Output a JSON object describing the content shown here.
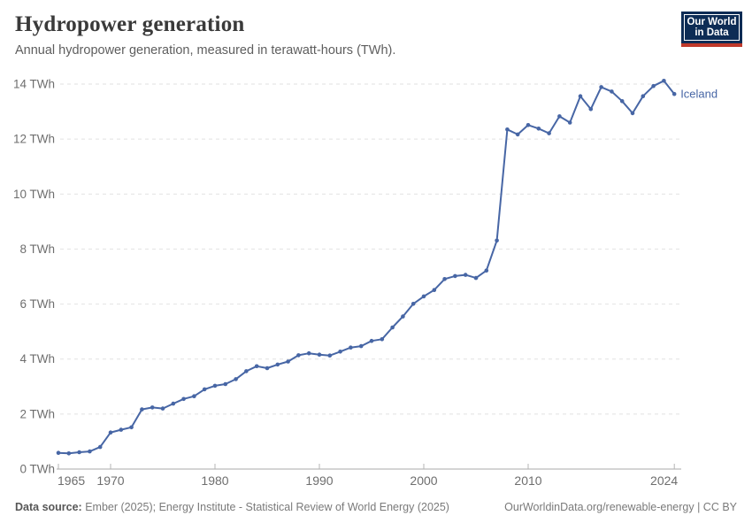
{
  "header": {
    "title": "Hydropower generation",
    "subtitle": "Annual hydropower generation, measured in terawatt-hours (TWh).",
    "logo": {
      "line1": "Our World",
      "line2": "in Data",
      "bg_color": "#0d2c55",
      "accent_color": "#c0392b"
    }
  },
  "chart_data": {
    "type": "line",
    "title": "Hydropower generation",
    "unit": "TWh",
    "grid": "horizontal-dashed",
    "legend_position": "end-of-line-label",
    "xlim": [
      1965,
      2024
    ],
    "ylim": [
      0,
      14
    ],
    "x_ticks": [
      1965,
      1970,
      1980,
      1990,
      2000,
      2010,
      2024
    ],
    "y_ticks": [
      0,
      2,
      4,
      6,
      8,
      10,
      12,
      14
    ],
    "y_tick_suffix": " TWh",
    "series": [
      {
        "name": "Iceland",
        "color": "#4766a5",
        "years": [
          1965,
          1966,
          1967,
          1968,
          1969,
          1970,
          1971,
          1972,
          1973,
          1974,
          1975,
          1976,
          1977,
          1978,
          1979,
          1980,
          1981,
          1982,
          1983,
          1984,
          1985,
          1986,
          1987,
          1988,
          1989,
          1990,
          1991,
          1992,
          1993,
          1994,
          1995,
          1996,
          1997,
          1998,
          1999,
          2000,
          2001,
          2002,
          2003,
          2004,
          2005,
          2006,
          2007,
          2008,
          2009,
          2010,
          2011,
          2012,
          2013,
          2014,
          2015,
          2016,
          2017,
          2018,
          2019,
          2020,
          2021,
          2022,
          2023,
          2024
        ],
        "values": [
          0.59,
          0.57,
          0.61,
          0.64,
          0.8,
          1.33,
          1.43,
          1.52,
          2.17,
          2.24,
          2.2,
          2.38,
          2.55,
          2.65,
          2.9,
          3.03,
          3.09,
          3.27,
          3.56,
          3.74,
          3.67,
          3.8,
          3.91,
          4.14,
          4.21,
          4.16,
          4.13,
          4.27,
          4.42,
          4.47,
          4.66,
          4.72,
          5.15,
          5.55,
          6.01,
          6.28,
          6.51,
          6.91,
          7.02,
          7.06,
          6.95,
          7.22,
          8.31,
          12.35,
          12.17,
          12.51,
          12.38,
          12.21,
          12.83,
          12.6,
          13.56,
          13.09,
          13.89,
          13.73,
          13.38,
          12.94,
          13.56,
          13.93,
          14.12,
          13.64
        ]
      }
    ]
  },
  "footer": {
    "source_label": "Data source:",
    "source_text": " Ember (2025); Energy Institute - Statistical Review of World Energy (2025)",
    "license_text": "OurWorldinData.org/renewable-energy | CC BY"
  }
}
